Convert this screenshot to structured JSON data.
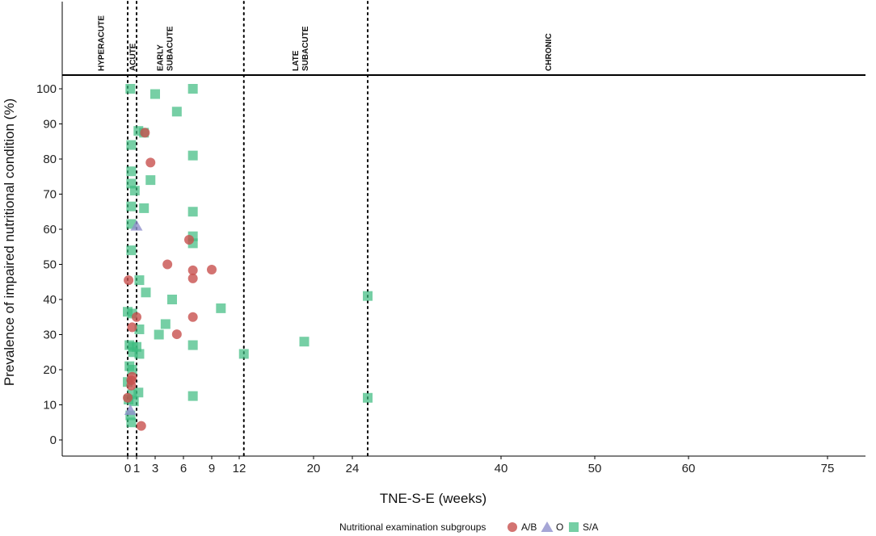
{
  "chart_data": {
    "type": "scatter",
    "title": "",
    "xlabel": "TNE-S-E (weeks)",
    "ylabel": "Prevalence of impaired nutritional condition (%)",
    "x_ticks": [
      0,
      1,
      3,
      6,
      9,
      12,
      20,
      24,
      40,
      50,
      60,
      75
    ],
    "x_tick_labels": [
      "0",
      "1",
      "3",
      "6",
      "9",
      "12",
      "20",
      "24",
      "40",
      "50",
      "60",
      "75"
    ],
    "y_ticks": [
      0,
      10,
      20,
      30,
      40,
      50,
      60,
      70,
      80,
      90,
      100
    ],
    "y_tick_labels": [
      "0",
      "10",
      "20",
      "30",
      "40",
      "50",
      "60",
      "70",
      "80",
      "90",
      "100"
    ],
    "ylim": [
      -5,
      105
    ],
    "phase_boundaries_weeks": [
      0,
      1,
      12.5,
      26
    ],
    "phases": [
      {
        "label_lines": [
          "HYPERACUTE"
        ],
        "at_weeks": -3
      },
      {
        "label_lines": [
          "ACUTE"
        ],
        "at_weeks": 0.5
      },
      {
        "label_lines": [
          "EARLY",
          "SUBACUTE"
        ],
        "at_weeks": 4
      },
      {
        "label_lines": [
          "LATE",
          "SUBACUTE"
        ],
        "at_weeks": 18.5
      },
      {
        "label_lines": [
          "CHRONIC"
        ],
        "at_weeks": 45
      }
    ],
    "legend": {
      "title": "Nutritional examination subgroups",
      "placement": "bottom",
      "entries": [
        {
          "label": "A/B",
          "shape": "circle",
          "color": "#c8504e"
        },
        {
          "label": "O",
          "shape": "triangle",
          "color": "#9090cc"
        },
        {
          "label": "S/A",
          "shape": "square",
          "color": "#3cbb7f"
        }
      ]
    },
    "series": [
      {
        "name": "A/B",
        "shape": "circle",
        "color": "#c8504e",
        "points": [
          [
            0.1,
            45.5
          ],
          [
            1.9,
            87.5
          ],
          [
            2.5,
            79
          ],
          [
            4.3,
            50
          ],
          [
            5.3,
            30.1
          ],
          [
            6.6,
            57
          ],
          [
            7,
            48.3
          ],
          [
            7,
            46
          ],
          [
            7,
            35
          ],
          [
            9,
            48.5
          ],
          [
            0.5,
            32.1
          ],
          [
            1,
            35
          ],
          [
            0.5,
            18
          ],
          [
            0.4,
            17
          ],
          [
            0.4,
            15.5
          ],
          [
            0,
            12
          ],
          [
            1.5,
            4
          ]
        ]
      },
      {
        "name": "O",
        "shape": "triangle",
        "color": "#9090cc",
        "points": [
          [
            1,
            61
          ],
          [
            0.3,
            8.5
          ]
        ]
      },
      {
        "name": "S/A",
        "shape": "square",
        "color": "#3cbb7f",
        "points": [
          [
            0.3,
            100
          ],
          [
            7,
            100
          ],
          [
            3,
            98.5
          ],
          [
            5.3,
            93.5
          ],
          [
            1.2,
            88
          ],
          [
            1.8,
            87.5
          ],
          [
            0.4,
            84
          ],
          [
            7,
            81
          ],
          [
            0.4,
            76.5
          ],
          [
            0.4,
            73
          ],
          [
            2.5,
            74
          ],
          [
            0.8,
            71
          ],
          [
            0.4,
            66.5
          ],
          [
            1.8,
            66
          ],
          [
            7,
            65
          ],
          [
            0.4,
            61.5
          ],
          [
            7,
            58
          ],
          [
            7,
            56
          ],
          [
            0.4,
            54
          ],
          [
            1.3,
            45.5
          ],
          [
            2,
            42
          ],
          [
            4.8,
            40
          ],
          [
            10,
            37.5
          ],
          [
            26,
            41
          ],
          [
            0,
            36.5
          ],
          [
            0.5,
            36
          ],
          [
            4.1,
            33
          ],
          [
            1.3,
            31.5
          ],
          [
            3.4,
            30
          ],
          [
            0.2,
            27
          ],
          [
            0.6,
            26.5
          ],
          [
            1,
            26.5
          ],
          [
            0.6,
            25
          ],
          [
            1.3,
            24.5
          ],
          [
            12.5,
            24.5
          ],
          [
            19,
            28
          ],
          [
            7,
            27
          ],
          [
            0.2,
            21
          ],
          [
            0.5,
            20
          ],
          [
            0,
            16.5
          ],
          [
            0.5,
            13
          ],
          [
            1.2,
            13.5
          ],
          [
            0.1,
            11.5
          ],
          [
            0.7,
            11
          ],
          [
            7,
            12.5
          ],
          [
            26,
            12
          ],
          [
            0.3,
            7
          ],
          [
            0.4,
            5
          ]
        ]
      }
    ]
  }
}
